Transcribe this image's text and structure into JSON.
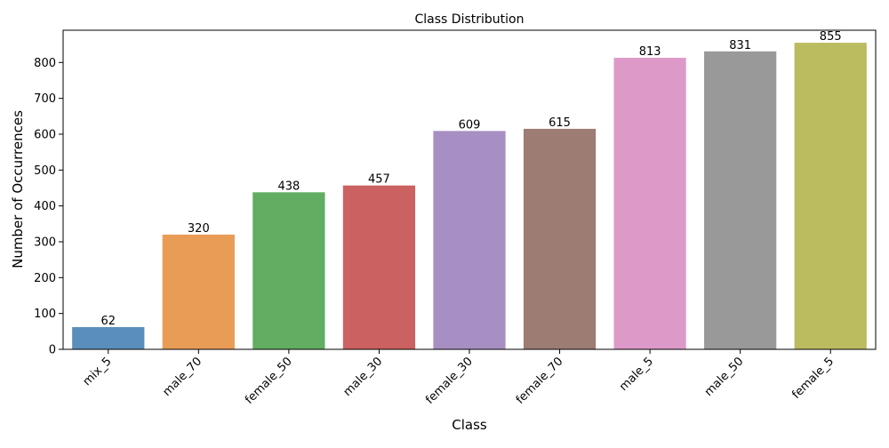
{
  "chart_data": {
    "type": "bar",
    "title": "Class Distribution",
    "xlabel": "Class",
    "ylabel": "Number of Occurrences",
    "categories": [
      "mix_5",
      "male_70",
      "female_50",
      "male_30",
      "female_30",
      "female_70",
      "male_5",
      "male_50",
      "female_5"
    ],
    "values": [
      62,
      320,
      438,
      457,
      609,
      615,
      813,
      831,
      855
    ],
    "data_labels": [
      "62",
      "320",
      "438",
      "457",
      "609",
      "615",
      "813",
      "831",
      "855"
    ],
    "colors": [
      "#5a8fbb",
      "#e89c56",
      "#61ad61",
      "#cc6161",
      "#a78fc3",
      "#9d7c73",
      "#dd9ac9",
      "#999999",
      "#bbbb5f"
    ],
    "ylim": [
      0,
      890
    ],
    "yticks": [
      0,
      100,
      200,
      300,
      400,
      500,
      600,
      700,
      800
    ],
    "ytick_labels": [
      "0",
      "100",
      "200",
      "300",
      "400",
      "500",
      "600",
      "700",
      "800"
    ],
    "xtick_rotation": 45,
    "grid": false,
    "legend": "none"
  }
}
